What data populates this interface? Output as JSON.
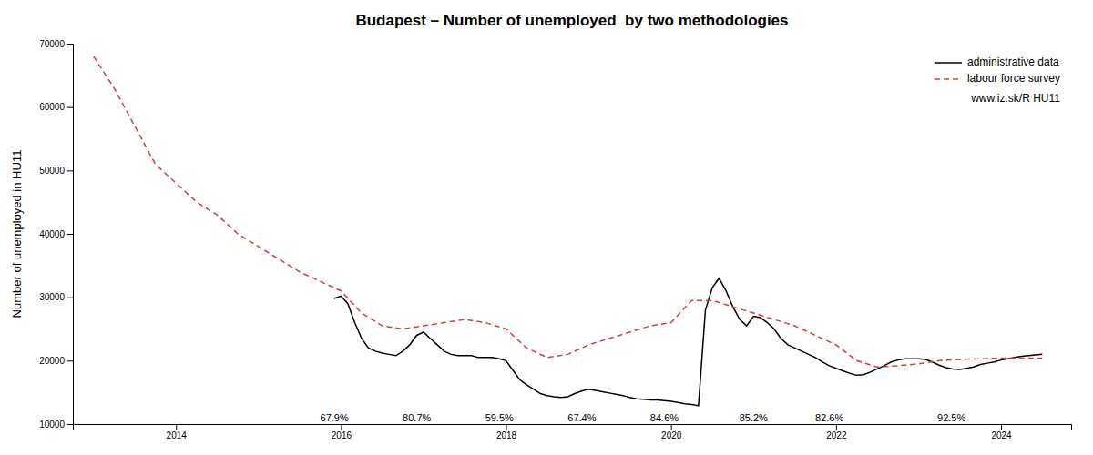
{
  "chart_data": {
    "type": "line",
    "title": "Budapest – Number of unemployed  by two methodologies",
    "y_label": "Number of unemployed in HU11",
    "xlim": [
      2012.75,
      2024.85
    ],
    "xticks": [
      2014,
      2016,
      2018,
      2020,
      2022,
      2024
    ],
    "ylim": [
      10000,
      70000
    ],
    "yticks": [
      10000,
      20000,
      30000,
      40000,
      50000,
      60000,
      70000
    ],
    "grid": false,
    "legend": "upper right",
    "legend_note": "www.iz.sk/R HU11",
    "series": [
      {
        "name": "administrative data",
        "color": "#000000",
        "line_style": "solid",
        "x": [
          2015.917,
          2016.0,
          2016.083,
          2016.167,
          2016.25,
          2016.333,
          2016.417,
          2016.5,
          2016.583,
          2016.667,
          2016.75,
          2016.833,
          2016.917,
          2017.0,
          2017.083,
          2017.167,
          2017.25,
          2017.333,
          2017.417,
          2017.5,
          2017.583,
          2017.667,
          2017.75,
          2017.833,
          2017.917,
          2018.0,
          2018.083,
          2018.167,
          2018.25,
          2018.333,
          2018.417,
          2018.5,
          2018.583,
          2018.667,
          2018.75,
          2018.833,
          2018.917,
          2019.0,
          2019.083,
          2019.167,
          2019.25,
          2019.333,
          2019.417,
          2019.5,
          2019.583,
          2019.667,
          2019.75,
          2019.833,
          2019.917,
          2020.0,
          2020.083,
          2020.167,
          2020.25,
          2020.333,
          2020.417,
          2020.5,
          2020.583,
          2020.667,
          2020.75,
          2020.833,
          2020.917,
          2021.0,
          2021.083,
          2021.167,
          2021.25,
          2021.333,
          2021.417,
          2021.5,
          2021.583,
          2021.667,
          2021.75,
          2021.833,
          2021.917,
          2022.0,
          2022.083,
          2022.167,
          2022.25,
          2022.333,
          2022.417,
          2022.5,
          2022.583,
          2022.667,
          2022.75,
          2022.833,
          2022.917,
          2023.0,
          2023.083,
          2023.167,
          2023.25,
          2023.333,
          2023.417,
          2023.5,
          2023.583,
          2023.667,
          2023.75,
          2023.833,
          2023.917,
          2024.0,
          2024.083,
          2024.167,
          2024.25,
          2024.333,
          2024.5
        ],
        "values": [
          29800,
          30200,
          29000,
          26000,
          23500,
          22000,
          21500,
          21200,
          21000,
          20800,
          21500,
          22500,
          24000,
          24500,
          23500,
          22500,
          21500,
          21000,
          20800,
          20800,
          20800,
          20500,
          20500,
          20500,
          20300,
          20000,
          18500,
          17000,
          16200,
          15500,
          14800,
          14500,
          14300,
          14200,
          14300,
          14800,
          15200,
          15500,
          15300,
          15100,
          14900,
          14700,
          14500,
          14200,
          14000,
          13900,
          13800,
          13800,
          13700,
          13600,
          13400,
          13200,
          13100,
          12900,
          28000,
          31500,
          33000,
          31000,
          28500,
          26500,
          25500,
          27000,
          26800,
          26000,
          25000,
          23500,
          22500,
          22000,
          21500,
          21000,
          20500,
          19800,
          19200,
          18800,
          18400,
          18000,
          17700,
          17800,
          18200,
          18700,
          19200,
          19800,
          20100,
          20300,
          20300,
          20300,
          20200,
          19800,
          19300,
          18900,
          18700,
          18600,
          18800,
          19000,
          19400,
          19600,
          19800,
          20100,
          20300,
          20500,
          20700,
          20800,
          21000
        ]
      },
      {
        "name": "labour force survey",
        "color": "#d04040",
        "line_style": "dashed",
        "x": [
          2013.0,
          2013.25,
          2013.5,
          2013.75,
          2014.0,
          2014.25,
          2014.5,
          2014.75,
          2015.0,
          2015.25,
          2015.5,
          2015.75,
          2016.0,
          2016.25,
          2016.5,
          2016.75,
          2017.0,
          2017.25,
          2017.5,
          2017.75,
          2018.0,
          2018.25,
          2018.5,
          2018.75,
          2019.0,
          2019.25,
          2019.5,
          2019.75,
          2020.0,
          2020.25,
          2020.5,
          2020.75,
          2021.0,
          2021.25,
          2021.5,
          2021.75,
          2022.0,
          2022.25,
          2022.5,
          2022.75,
          2023.0,
          2023.25,
          2023.5,
          2023.75,
          2024.0,
          2024.25,
          2024.5
        ],
        "values": [
          68000,
          63000,
          57000,
          51000,
          48000,
          45000,
          43000,
          40000,
          38000,
          36000,
          34000,
          32500,
          31000,
          27500,
          25500,
          25000,
          25500,
          26000,
          26500,
          26000,
          25000,
          22000,
          20500,
          21000,
          22500,
          23500,
          24500,
          25500,
          26000,
          29500,
          29500,
          28500,
          27500,
          26500,
          25500,
          24000,
          22500,
          20000,
          19000,
          19200,
          19500,
          20000,
          20200,
          20300,
          20400,
          20400,
          20400
        ]
      }
    ],
    "annotations": [
      {
        "text": "67.9%",
        "x": 2015.92,
        "y": 10200
      },
      {
        "text": "80.7%",
        "x": 2016.92,
        "y": 10200
      },
      {
        "text": "59.5%",
        "x": 2017.92,
        "y": 10200
      },
      {
        "text": "67.4%",
        "x": 2018.92,
        "y": 10200
      },
      {
        "text": "84.6%",
        "x": 2019.92,
        "y": 10200
      },
      {
        "text": "85.2%",
        "x": 2021.0,
        "y": 10200
      },
      {
        "text": "82.6%",
        "x": 2021.92,
        "y": 10200
      },
      {
        "text": "92.5%",
        "x": 2023.4,
        "y": 10200
      }
    ]
  }
}
